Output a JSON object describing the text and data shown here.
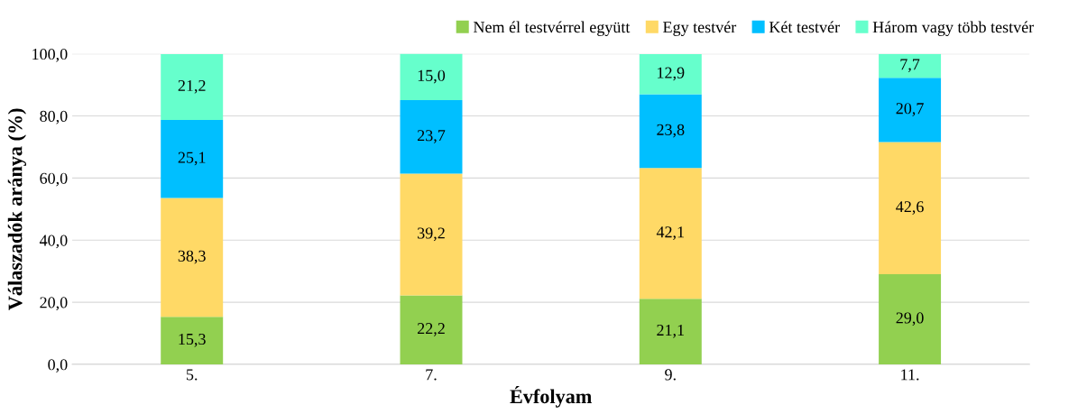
{
  "chart_data": {
    "type": "bar",
    "stacked": true,
    "xlabel": "Évfolyam",
    "ylabel": "Válaszadók aránya (%)",
    "categories": [
      "5.",
      "7.",
      "9.",
      "11."
    ],
    "series": [
      {
        "name": "Nem él testvérrel együtt",
        "color": "#92d050",
        "values": [
          15.3,
          22.2,
          21.1,
          29.0
        ]
      },
      {
        "name": "Egy testvér",
        "color": "#ffd966",
        "values": [
          38.3,
          39.2,
          42.1,
          42.6
        ]
      },
      {
        "name": "Két testvér",
        "color": "#00bfff",
        "values": [
          25.1,
          23.7,
          23.8,
          20.7
        ]
      },
      {
        "name": "Három vagy több testvér",
        "color": "#66ffcc",
        "values": [
          21.2,
          15.0,
          12.9,
          7.7
        ]
      }
    ],
    "ylim": [
      0,
      100
    ],
    "yticks": [
      {
        "value": 0,
        "label": "0,0"
      },
      {
        "value": 20,
        "label": "20,0"
      },
      {
        "value": 40,
        "label": "40,0"
      },
      {
        "value": 60,
        "label": "60,0"
      },
      {
        "value": 80,
        "label": "80,0"
      },
      {
        "value": 100,
        "label": "100,0"
      }
    ],
    "value_labels": [
      [
        "15,3",
        "22,2",
        "21,1",
        "29,0"
      ],
      [
        "38,3",
        "39,2",
        "42,1",
        "42,6"
      ],
      [
        "25,1",
        "23,7",
        "23,8",
        "20,7"
      ],
      [
        "21,2",
        "15,0",
        "12,9",
        "7,7"
      ]
    ],
    "grid": "y",
    "legend": "top right"
  }
}
